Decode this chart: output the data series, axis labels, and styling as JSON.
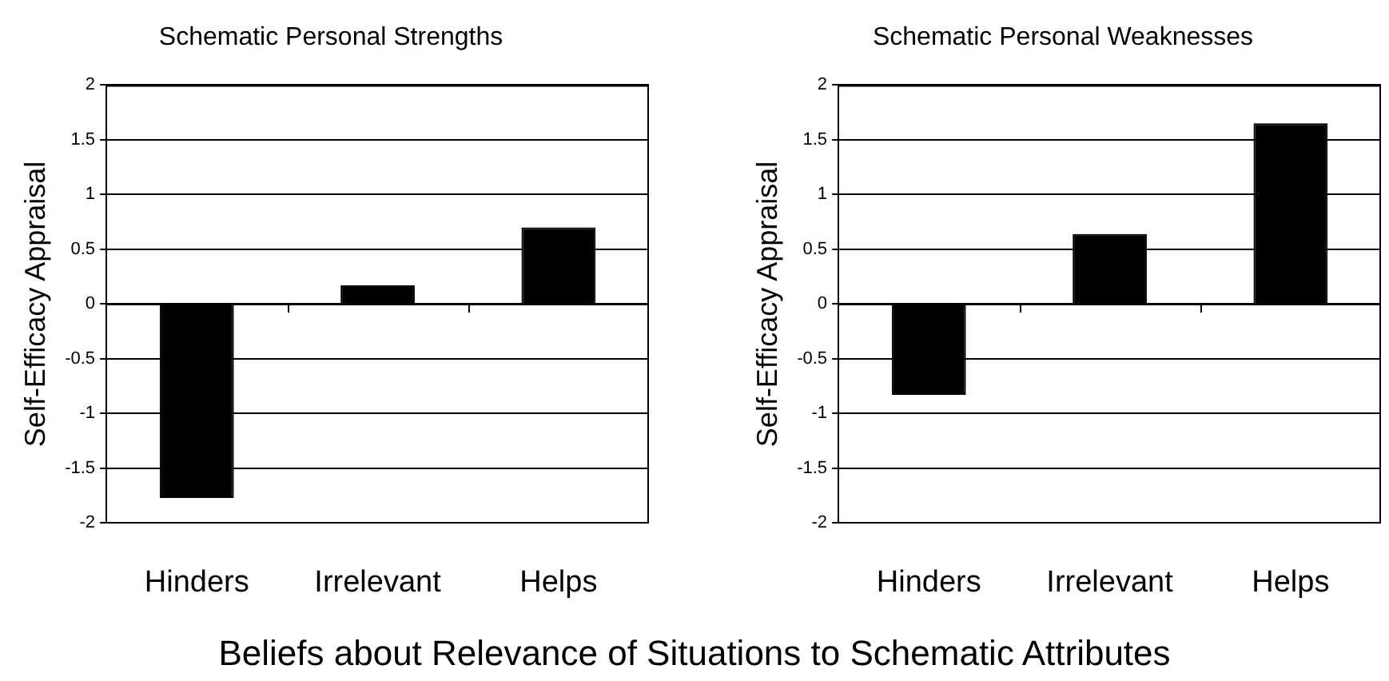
{
  "chart_data": [
    {
      "type": "bar",
      "title": "Schematic Personal Strengths",
      "ylabel": "Self-Efficacy Appraisal",
      "categories": [
        "Hinders",
        "Irrelevant",
        "Helps"
      ],
      "values": [
        -1.77,
        0.17,
        0.7
      ],
      "color": "#000000",
      "ylim": [
        -2,
        2
      ],
      "yticks": [
        2,
        1.5,
        1,
        0.5,
        0,
        -0.5,
        -1,
        -1.5,
        -2
      ],
      "grid": "y",
      "annotations": [
        "Beliefs about Relevance of Situations to Schematic Attributes"
      ]
    },
    {
      "type": "bar",
      "title": "Schematic Personal Weaknesses",
      "ylabel": "Self-Efficacy Appraisal",
      "categories": [
        "Hinders",
        "Irrelevant",
        "Helps"
      ],
      "values": [
        -0.83,
        0.64,
        1.65
      ],
      "color": "#000000",
      "ylim": [
        -2,
        2
      ],
      "yticks": [
        2,
        1.5,
        1,
        0.5,
        0,
        -0.5,
        -1,
        -1.5,
        -2
      ],
      "grid": "y"
    }
  ]
}
